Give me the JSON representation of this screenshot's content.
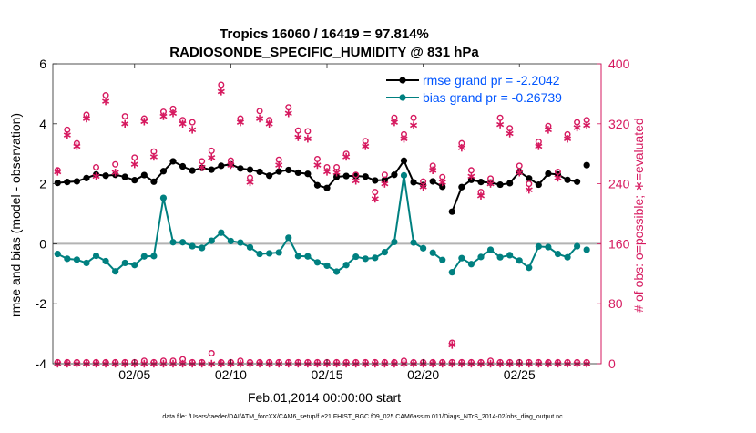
{
  "chart_data": {
    "type": "line",
    "title": "Tropics 16060 / 16419 = 97.814%",
    "subtitle": "RADIOSONDE_SPECIFIC_HUMIDITY @ 831 hPa",
    "xlabel": "Feb.01,2014 00:00:00 start",
    "ylabel": "rmse and bias (model - observation)",
    "ylabel_right": "# of obs: o=possible; ∗=evaluated",
    "footer": "data file: /Users/raeder/DAI/ATM_forcXX/CAM6_setup/f.e21.FHIST_BGC.f09_025.CAM6assim.011/Diags_NTrS_2014-02/obs_diag_output.nc",
    "xlim": [
      0.75,
      29.25
    ],
    "ylim": [
      -4,
      6
    ],
    "ylim_right": [
      0,
      400
    ],
    "x_ticks": [
      5,
      10,
      15,
      20,
      25
    ],
    "x_tick_labels": [
      "02/05",
      "02/10",
      "02/15",
      "02/20",
      "02/25"
    ],
    "y_ticks": [
      -4,
      -2,
      0,
      2,
      4,
      6
    ],
    "y_tick_labels": [
      "-4",
      "-2",
      "0",
      "2",
      "4",
      "6"
    ],
    "y_right_ticks": [
      0,
      80,
      160,
      240,
      320,
      400
    ],
    "y_right_tick_labels": [
      "0",
      "80",
      "160",
      "240",
      "320",
      "400"
    ],
    "colors": {
      "rmse": "#000000",
      "bias": "#008080",
      "obs": "#d6195f",
      "zero_line": "#b3b3b3",
      "legend_text": "#0055ff"
    },
    "x": [
      1,
      1.5,
      2,
      2.5,
      3,
      3.5,
      4,
      4.5,
      5,
      5.5,
      6,
      6.5,
      7,
      7.5,
      8,
      8.5,
      9,
      9.5,
      10,
      10.5,
      11,
      11.5,
      12,
      12.5,
      13,
      13.5,
      14,
      14.5,
      15,
      15.5,
      16,
      16.5,
      17,
      17.5,
      18,
      18.5,
      19,
      19.5,
      20,
      20.5,
      21,
      21.5,
      22,
      22.5,
      23,
      23.5,
      24,
      24.5,
      25,
      25.5,
      26,
      26.5,
      27,
      27.5,
      28,
      28.5
    ],
    "series": [
      {
        "name": "rmse grand pr = -2.2042",
        "marker": "filled-circle",
        "values": [
          2.03,
          2.06,
          2.08,
          2.19,
          2.31,
          2.27,
          2.3,
          2.23,
          2.12,
          2.29,
          2.07,
          2.42,
          2.75,
          2.58,
          2.44,
          2.53,
          2.47,
          2.6,
          2.65,
          2.51,
          2.47,
          2.4,
          2.27,
          2.41,
          2.46,
          2.37,
          2.33,
          1.95,
          1.86,
          2.23,
          2.26,
          2.26,
          2.24,
          2.11,
          2.13,
          2.3,
          2.77,
          2.05,
          1.96,
          2.08,
          1.9,
          1.07,
          1.89,
          2.13,
          2.06,
          2.04,
          1.97,
          2.02,
          2.4,
          2.18,
          1.97,
          2.34,
          2.31,
          2.13,
          2.07,
          2.62
        ],
        "gaps_after_index": [
          38,
          40,
          54
        ]
      },
      {
        "name": "bias grand pr = -0.26739",
        "marker": "filled-circle",
        "values": [
          -0.34,
          -0.5,
          -0.53,
          -0.64,
          -0.4,
          -0.58,
          -0.92,
          -0.64,
          -0.71,
          -0.42,
          -0.41,
          1.53,
          0.05,
          0.05,
          -0.08,
          -0.14,
          0.1,
          0.37,
          0.09,
          0.04,
          -0.12,
          -0.34,
          -0.32,
          -0.29,
          0.2,
          -0.41,
          -0.42,
          -0.62,
          -0.73,
          -0.93,
          -0.71,
          -0.43,
          -0.5,
          -0.47,
          -0.28,
          0.06,
          2.28,
          0.04,
          -0.15,
          -0.3,
          -0.54,
          -0.95,
          -0.48,
          -0.68,
          -0.44,
          -0.2,
          -0.45,
          -0.38,
          -0.56,
          -0.8,
          -0.09,
          -0.11,
          -0.34,
          -0.45,
          -0.08,
          -0.2
        ],
        "gaps_after_index": [
          38,
          40,
          54
        ]
      },
      {
        "name": "possible",
        "marker": "open-circle",
        "axis": "right",
        "values": [
          258,
          312,
          294,
          332,
          262,
          358,
          266,
          330,
          275,
          327,
          283,
          336,
          340,
          325,
          322,
          270,
          284,
          372,
          271,
          327,
          248,
          337,
          325,
          272,
          342,
          311,
          310,
          273,
          262,
          262,
          280,
          252,
          297,
          229,
          252,
          328,
          306,
          328,
          243,
          264,
          249,
          28,
          294,
          258,
          229,
          247,
          328,
          314,
          264,
          240,
          296,
          317,
          256,
          306,
          322,
          325
        ]
      },
      {
        "name": "evaluated",
        "marker": "asterisk",
        "axis": "right",
        "values": [
          256,
          305,
          290,
          327,
          250,
          350,
          255,
          320,
          266,
          323,
          276,
          330,
          334,
          320,
          312,
          262,
          275,
          363,
          265,
          322,
          242,
          327,
          320,
          265,
          334,
          302,
          300,
          265,
          256,
          255,
          276,
          244,
          290,
          220,
          240,
          322,
          300,
          318,
          236,
          258,
          242,
          25,
          288,
          250,
          224,
          240,
          319,
          307,
          255,
          232,
          290,
          312,
          248,
          300,
          315,
          318
        ]
      }
    ],
    "near_zero_possible": [
      2,
      2,
      2,
      2,
      2,
      2,
      2,
      2,
      2,
      4,
      2,
      4,
      4,
      6,
      2,
      2,
      14,
      2,
      2,
      4,
      2,
      2,
      2,
      2,
      2,
      2,
      2,
      2,
      2,
      2,
      2,
      2,
      2,
      2,
      2,
      2,
      4,
      2,
      2,
      2,
      2,
      2,
      2,
      2,
      2,
      4,
      2,
      2,
      2,
      2,
      2,
      2,
      2,
      2,
      2,
      2
    ],
    "near_zero_evaluated": [
      0,
      0,
      0,
      0,
      0,
      0,
      0,
      0,
      0,
      0,
      0,
      0,
      0,
      0,
      0,
      0,
      0,
      0,
      0,
      0,
      0,
      0,
      0,
      0,
      0,
      0,
      0,
      0,
      0,
      0,
      0,
      0,
      0,
      0,
      0,
      0,
      0,
      0,
      0,
      0,
      0,
      0,
      0,
      0,
      0,
      0,
      0,
      0,
      0,
      0,
      0,
      0,
      0,
      0,
      0,
      0
    ],
    "legend_position": "top-right"
  }
}
